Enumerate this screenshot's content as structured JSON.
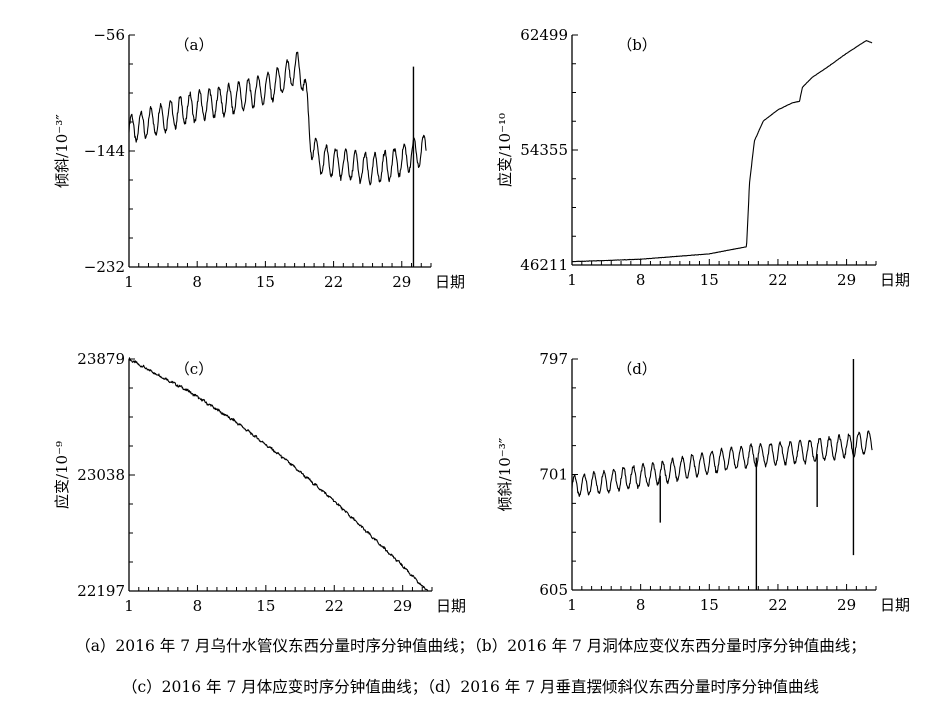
{
  "chart_data": [
    {
      "id": "a",
      "type": "line",
      "panel_label": "（a）",
      "ylabel": "倾斜/10⁻³″",
      "xlabel": "日期",
      "xlim": [
        1,
        32
      ],
      "ylim": [
        -232,
        -56
      ],
      "x_ticks": [
        1,
        8,
        15,
        22,
        29
      ],
      "y_ticks": [
        -232,
        -144,
        -56
      ],
      "series": [
        {
          "style": "diurnal_oscillation",
          "oscillation_amplitude": 11,
          "trend": [
            [
              1,
              -128
            ],
            [
              7,
              -112
            ],
            [
              12,
              -104
            ],
            [
              16,
              -94
            ],
            [
              17.8,
              -84
            ],
            [
              18.3,
              -80
            ],
            [
              19,
              -90
            ],
            [
              19.6,
              -135
            ],
            [
              20.5,
              -150
            ],
            [
              23,
              -154
            ],
            [
              26,
              -158
            ],
            [
              28,
              -154
            ],
            [
              30.5,
              -146
            ],
            [
              31.5,
              -142
            ]
          ],
          "spikes": [
            {
              "x": 30.2,
              "y_min": -232,
              "y_max": -80
            }
          ]
        }
      ]
    },
    {
      "id": "b",
      "type": "line",
      "panel_label": "（b）",
      "ylabel": "应变/10⁻¹⁰",
      "xlabel": "日期",
      "xlim": [
        1,
        32
      ],
      "ylim": [
        46211,
        62499
      ],
      "x_ticks": [
        1,
        8,
        15,
        22,
        29
      ],
      "y_ticks": [
        46211,
        54355,
        62499
      ],
      "series": [
        {
          "style": "smooth",
          "trend": [
            [
              1,
              46450
            ],
            [
              8,
              46620
            ],
            [
              15,
              47000
            ],
            [
              18.8,
              47500
            ],
            [
              19.1,
              52000
            ],
            [
              19.6,
              55000
            ],
            [
              20.5,
              56400
            ],
            [
              22,
              57200
            ],
            [
              23.5,
              57700
            ],
            [
              24.2,
              57800
            ],
            [
              24.5,
              58800
            ],
            [
              25.5,
              59500
            ],
            [
              27,
              60200
            ],
            [
              29,
              61200
            ],
            [
              31,
              62100
            ],
            [
              31.6,
              61950
            ]
          ],
          "spikes": []
        }
      ]
    },
    {
      "id": "c",
      "type": "line",
      "panel_label": "（c）",
      "ylabel": "应变/10⁻⁹",
      "xlabel": "日期",
      "xlim": [
        1,
        32
      ],
      "ylim": [
        22197,
        23879
      ],
      "x_ticks": [
        1,
        8,
        15,
        22,
        29
      ],
      "y_ticks": [
        22197,
        23038,
        23879
      ],
      "series": [
        {
          "style": "small_noise",
          "oscillation_amplitude": 8,
          "trend": [
            [
              1,
              23879
            ],
            [
              3,
              23800
            ],
            [
              7,
              23650
            ],
            [
              12,
              23420
            ],
            [
              17,
              23150
            ],
            [
              22,
              22850
            ],
            [
              26,
              22580
            ],
            [
              29,
              22380
            ],
            [
              31,
              22230
            ],
            [
              31.6,
              22205
            ]
          ],
          "spikes": []
        }
      ]
    },
    {
      "id": "d",
      "type": "line",
      "panel_label": "（d）",
      "ylabel": "倾斜/10⁻³″",
      "xlabel": "日期",
      "xlim": [
        1,
        32
      ],
      "ylim": [
        605,
        797
      ],
      "x_ticks": [
        1,
        8,
        15,
        22,
        29
      ],
      "y_ticks": [
        605,
        701,
        797
      ],
      "series": [
        {
          "style": "diurnal_oscillation",
          "oscillation_amplitude": 9,
          "trend": [
            [
              1,
              691
            ],
            [
              5,
              696
            ],
            [
              10,
              702
            ],
            [
              15,
              711
            ],
            [
              20,
              717
            ],
            [
              25,
              720
            ],
            [
              30,
              726
            ],
            [
              31.6,
              728
            ]
          ],
          "spikes": [
            {
              "x": 10,
              "y_min": 661,
              "y_max": 700
            },
            {
              "x": 19.8,
              "y_min": 605,
              "y_max": 715
            },
            {
              "x": 26,
              "y_min": 674,
              "y_max": 718
            },
            {
              "x": 29.7,
              "y_min": 634,
              "y_max": 797
            }
          ]
        }
      ]
    }
  ],
  "captions": {
    "line1": "（a）2016 年 7 月乌什水管仪东西分量时序分钟值曲线；（b）2016 年 7 月洞体应变仪东西分量时序分钟值曲线；",
    "line2": "（c）2016 年 7 月体应变时序分钟值曲线；（d）2016 年 7 月垂直摆倾斜仪东西分量时序分钟值曲线"
  }
}
